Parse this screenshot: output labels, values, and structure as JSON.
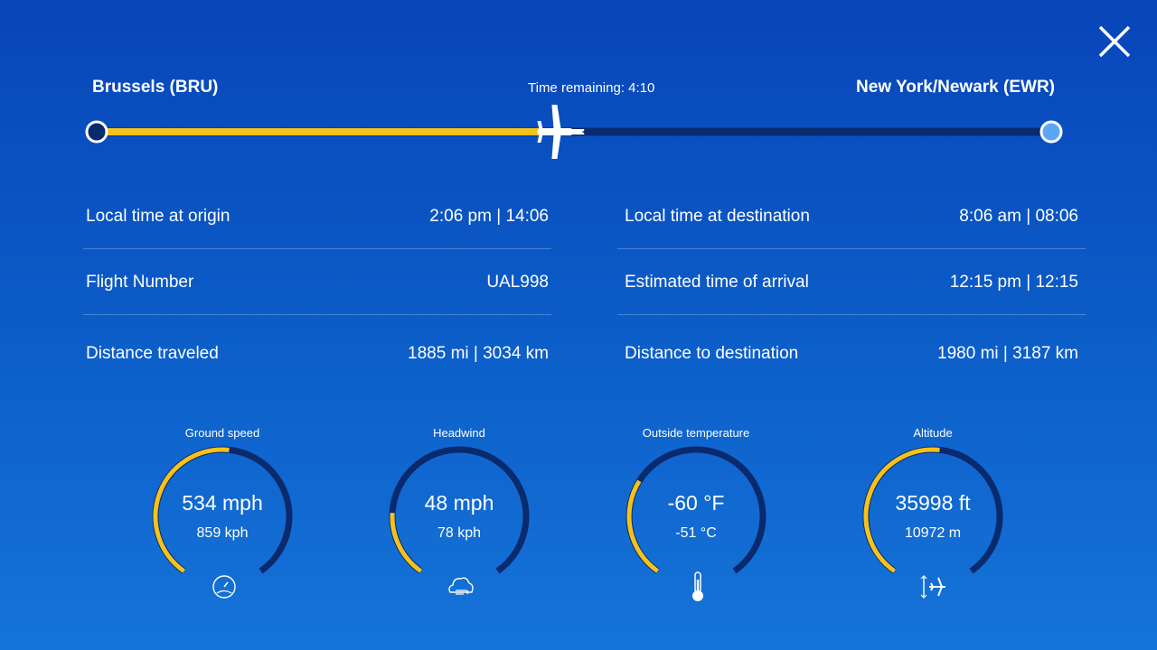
{
  "route": {
    "origin": "Brussels (BRU)",
    "destination": "New York/Newark (EWR)",
    "time_remaining": "Time remaining: 4:10",
    "progress": 0.49
  },
  "colors": {
    "progress": "#f5c21b",
    "track": "#0a2a6e",
    "dest_dot": "#5aa8f5"
  },
  "left_info": [
    {
      "label": "Local time at origin",
      "value": "2:06 pm | 14:06"
    },
    {
      "label": "Flight Number",
      "value": "UAL998"
    },
    {
      "label": "Distance traveled",
      "value": "1885 mi | 3034 km"
    }
  ],
  "right_info": [
    {
      "label": "Local time at destination",
      "value": "8:06 am | 08:06"
    },
    {
      "label": "Estimated time of arrival",
      "value": "12:15 pm | 12:15"
    },
    {
      "label": "Distance to destination",
      "value": "1980 mi | 3187 km"
    }
  ],
  "gauges": [
    {
      "label": "Ground  speed",
      "main": "534 mph",
      "sub": "859 kph",
      "fill": 0.52,
      "icon": "speedometer-icon"
    },
    {
      "label": "Headwind",
      "main": "48 mph",
      "sub": "78 kph",
      "fill": 0.2,
      "icon": "wind-cloud-icon"
    },
    {
      "label": "Outside temperature",
      "main": "-60 °F",
      "sub": "-51 °C",
      "fill": 0.3,
      "icon": "thermometer-icon"
    },
    {
      "label": "Altitude",
      "main": "35998 ft",
      "sub": "10972 m",
      "fill": 0.52,
      "icon": "altitude-plane-icon"
    }
  ]
}
